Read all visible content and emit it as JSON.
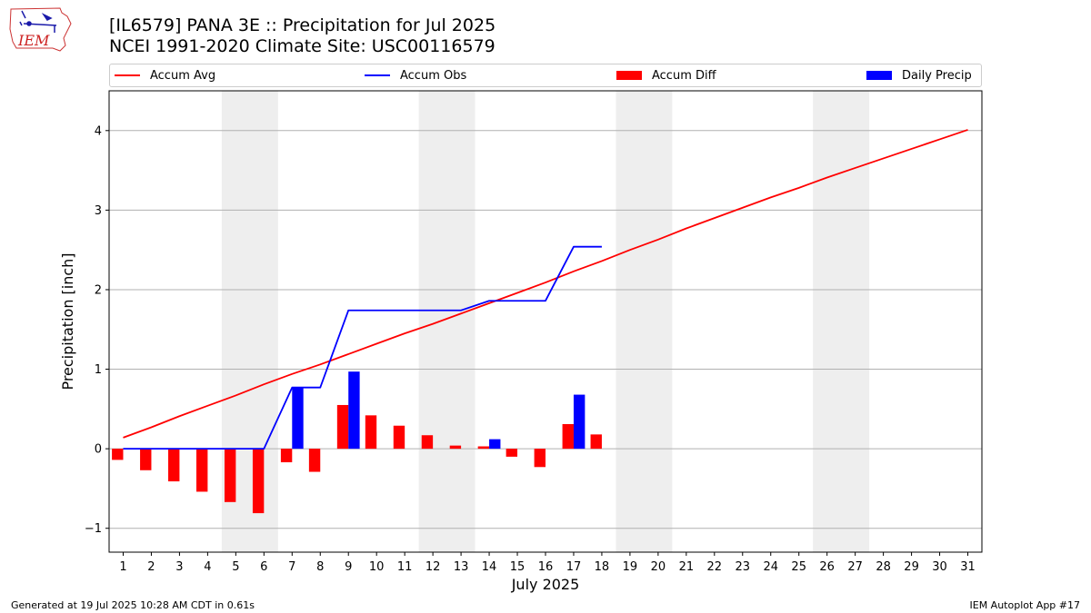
{
  "header": {
    "title_line1": "[IL6579] PANA 3E :: Precipitation for Jul 2025",
    "title_line2": "NCEI 1991-2020 Climate Site: USC00116579",
    "logo_text": "IEM"
  },
  "colors": {
    "accum_avg": "#ff0000",
    "accum_obs": "#0000ff",
    "accum_diff": "#ff0000",
    "daily_precip": "#0000ff",
    "weekend_shade": "#eeeeee",
    "grid": "#b0b0b0"
  },
  "legend": {
    "position": "top, above plot",
    "items": [
      {
        "label": "Accum Avg",
        "kind": "line",
        "color": "#ff0000"
      },
      {
        "label": "Accum Obs",
        "kind": "line",
        "color": "#0000ff"
      },
      {
        "label": "Accum Diff",
        "kind": "patch",
        "color": "#ff0000"
      },
      {
        "label": "Daily Precip",
        "kind": "patch",
        "color": "#0000ff"
      }
    ]
  },
  "chart_data": {
    "type": "bar",
    "xlabel": "July 2025",
    "ylabel": "Precipitation [inch]",
    "x": [
      1,
      2,
      3,
      4,
      5,
      6,
      7,
      8,
      9,
      10,
      11,
      12,
      13,
      14,
      15,
      16,
      17,
      18,
      19,
      20,
      21,
      22,
      23,
      24,
      25,
      26,
      27,
      28,
      29,
      30,
      31
    ],
    "xlim": [
      0.5,
      31.5
    ],
    "ylim": [
      -1.3,
      4.5
    ],
    "yticks": [
      -1,
      0,
      1,
      2,
      3,
      4
    ],
    "ytick_labels": [
      "−1",
      "0",
      "1",
      "2",
      "3",
      "4"
    ],
    "grid": "horizontal",
    "weekend_shading": [
      [
        4.5,
        6.5
      ],
      [
        11.5,
        13.5
      ],
      [
        18.5,
        20.5
      ],
      [
        25.5,
        27.5
      ]
    ],
    "series": [
      {
        "name": "Accum Avg",
        "kind": "line",
        "x": [
          1,
          2,
          3,
          4,
          5,
          6,
          7,
          8,
          9,
          10,
          11,
          12,
          13,
          14,
          15,
          16,
          17,
          18,
          19,
          20,
          21,
          22,
          23,
          24,
          25,
          26,
          27,
          28,
          29,
          30,
          31
        ],
        "values": [
          0.14,
          0.27,
          0.41,
          0.54,
          0.67,
          0.81,
          0.94,
          1.06,
          1.19,
          1.32,
          1.45,
          1.57,
          1.7,
          1.83,
          1.96,
          2.09,
          2.23,
          2.36,
          2.5,
          2.63,
          2.77,
          2.9,
          3.03,
          3.16,
          3.28,
          3.41,
          3.53,
          3.65,
          3.77,
          3.89,
          4.01
        ]
      },
      {
        "name": "Accum Obs",
        "kind": "line",
        "x": [
          1,
          2,
          3,
          4,
          5,
          6,
          7,
          8,
          9,
          10,
          11,
          12,
          13,
          14,
          15,
          16,
          17,
          18
        ],
        "values": [
          0,
          0,
          0,
          0,
          0,
          0,
          0.77,
          0.77,
          1.74,
          1.74,
          1.74,
          1.74,
          1.74,
          1.86,
          1.86,
          1.86,
          2.54,
          2.54
        ]
      },
      {
        "name": "Accum Diff",
        "kind": "bar",
        "x": [
          1,
          2,
          3,
          4,
          5,
          6,
          7,
          8,
          9,
          10,
          11,
          12,
          13,
          14,
          15,
          16,
          17,
          18
        ],
        "values": [
          -0.14,
          -0.27,
          -0.41,
          -0.54,
          -0.67,
          -0.81,
          -0.17,
          -0.29,
          0.55,
          0.42,
          0.29,
          0.17,
          0.04,
          0.03,
          -0.1,
          -0.23,
          0.31,
          0.18
        ]
      },
      {
        "name": "Daily Precip",
        "kind": "bar",
        "x": [
          7,
          9,
          14,
          17
        ],
        "values": [
          0.77,
          0.97,
          0.12,
          0.68
        ]
      }
    ]
  },
  "footer": {
    "left": "Generated at 19 Jul 2025 10:28 AM CDT in 0.61s",
    "right": "IEM Autoplot App #17"
  }
}
